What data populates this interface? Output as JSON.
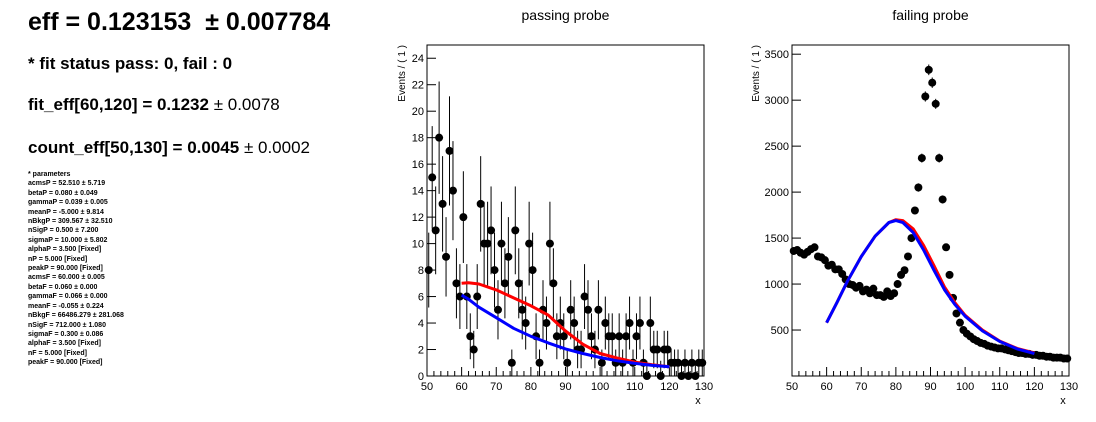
{
  "summary": {
    "eff_text": "eff = 0.123153",
    "eff_err": "± 0.007784",
    "fit_status": "* fit status pass: 0, fail : 0",
    "fit_eff_text": "fit_eff[60,120] = 0.1232",
    "fit_eff_err": "± 0.0078",
    "count_eff_text": "count_eff[50,130] = 0.0045",
    "count_eff_err": "± 0.0002"
  },
  "parameters": {
    "header": "* parameters",
    "items": [
      "acmsP = 52.510 ± 5.719",
      "betaP = 0.080 ± 0.049",
      "gammaP = 0.039 ± 0.005",
      "meanP = -5.000 ± 9.814",
      "nBkgP = 309.567 ± 32.510",
      "nSigP = 0.500 ± 7.200",
      "sigmaP = 10.000 ± 5.802",
      "alphaP = 3.500 [Fixed]",
      "nP = 5.000 [Fixed]",
      "peakP = 90.000 [Fixed]",
      "acmsF = 60.000 ± 0.005",
      "betaF = 0.060 ± 0.000",
      "gammaF = 0.066 ± 0.000",
      "meanF = -0.055 ± 0.224",
      "nBkgF = 66486.279 ± 281.068",
      "nSigF = 712.000 ± 1.080",
      "sigmaF = 0.300 ± 0.086",
      "alphaF = 3.500 [Fixed]",
      "nF = 5.000 [Fixed]",
      "peakF = 90.000 [Fixed]"
    ]
  },
  "colors": {
    "data": "#000000",
    "total_fit": "#ff0000",
    "background_fit": "#0000ff"
  },
  "chart_data": [
    {
      "type": "scatter",
      "title": "passing probe",
      "xlabel": "x",
      "ylabel": "Events / ( 1 )",
      "xlim": [
        50,
        130
      ],
      "ylim": [
        0,
        25
      ],
      "xticks": [
        50,
        60,
        70,
        80,
        90,
        100,
        110,
        120,
        130
      ],
      "yticks": [
        0,
        2,
        4,
        6,
        8,
        10,
        12,
        14,
        16,
        18,
        20,
        22,
        24
      ],
      "grid": false,
      "series": [
        {
          "kind": "data",
          "x": [
            50.5,
            51.5,
            52.5,
            53.5,
            54.5,
            55.5,
            56.5,
            57.5,
            58.5,
            59.5,
            60.5,
            61.5,
            62.5,
            63.5,
            64.5,
            65.5,
            66.5,
            67.5,
            68.5,
            69.5,
            70.5,
            71.5,
            72.5,
            73.5,
            74.5,
            75.5,
            76.5,
            77.5,
            78.5,
            79.5,
            80.5,
            81.5,
            82.5,
            83.5,
            84.5,
            85.5,
            86.5,
            87.5,
            88.5,
            89.5,
            90.5,
            91.5,
            92.5,
            93.5,
            94.5,
            95.5,
            96.5,
            97.5,
            98.5,
            99.5,
            100.5,
            101.5,
            102.5,
            103.5,
            104.5,
            105.5,
            106.5,
            107.5,
            108.5,
            109.5,
            110.5,
            111.5,
            112.5,
            113.5,
            114.5,
            115.5,
            116.5,
            117.5,
            118.5,
            119.5,
            120.5,
            121.5,
            122.5,
            123.5,
            124.5,
            125.5,
            126.5,
            127.5,
            128.5,
            129.5
          ],
          "y": [
            8,
            15,
            11,
            18,
            13,
            9,
            17,
            14,
            7,
            6,
            12,
            6,
            3,
            2,
            6,
            13,
            10,
            10,
            11,
            8,
            5,
            10,
            7,
            9,
            1,
            11,
            7,
            5,
            4,
            10,
            8,
            3,
            1,
            5,
            4,
            10,
            7,
            3,
            4,
            3,
            1,
            5,
            4,
            2,
            2,
            6,
            5,
            3,
            2,
            5,
            1,
            4,
            3,
            3,
            1,
            3,
            1,
            3,
            4,
            1,
            3,
            4,
            1,
            0,
            4,
            2,
            2,
            0,
            2,
            2,
            1,
            1,
            1,
            0,
            1,
            0,
            1,
            0,
            1,
            1
          ]
        },
        {
          "kind": "total_fit",
          "x": [
            60,
            62,
            65,
            70,
            75,
            80,
            85,
            90,
            95,
            100,
            105,
            110,
            115,
            120
          ],
          "y": [
            7.0,
            7.05,
            6.95,
            6.5,
            5.9,
            5.3,
            4.6,
            3.4,
            2.4,
            1.7,
            1.35,
            1.05,
            0.85,
            0.7
          ]
        },
        {
          "kind": "background_fit",
          "x": [
            60,
            62,
            65,
            70,
            75,
            80,
            85,
            90,
            95,
            100,
            105,
            110,
            115,
            120
          ],
          "y": [
            6.1,
            5.8,
            5.2,
            4.4,
            3.6,
            3.0,
            2.5,
            2.05,
            1.7,
            1.4,
            1.15,
            0.95,
            0.8,
            0.7
          ]
        }
      ]
    },
    {
      "type": "scatter",
      "title": "failing probe",
      "xlabel": "x",
      "ylabel": "Events / ( 1 )",
      "xlim": [
        50,
        130
      ],
      "ylim": [
        0,
        3600
      ],
      "xticks": [
        50,
        60,
        70,
        80,
        90,
        100,
        110,
        120,
        130
      ],
      "yticks": [
        500,
        1000,
        1500,
        2000,
        2500,
        3000,
        3500
      ],
      "grid": false,
      "series": [
        {
          "kind": "data",
          "x": [
            50.5,
            51.5,
            52.5,
            53.5,
            54.5,
            55.5,
            56.5,
            57.5,
            58.5,
            59.5,
            60.5,
            61.5,
            62.5,
            63.5,
            64.5,
            65.5,
            66.5,
            67.5,
            68.5,
            69.5,
            70.5,
            71.5,
            72.5,
            73.5,
            74.5,
            75.5,
            76.5,
            77.5,
            78.5,
            79.5,
            80.5,
            81.5,
            82.5,
            83.5,
            84.5,
            85.5,
            86.5,
            87.5,
            88.5,
            89.5,
            90.5,
            91.5,
            92.5,
            93.5,
            94.5,
            95.5,
            96.5,
            97.5,
            98.5,
            99.5,
            100.5,
            101.5,
            102.5,
            103.5,
            104.5,
            105.5,
            106.5,
            107.5,
            108.5,
            109.5,
            110.5,
            111.5,
            112.5,
            113.5,
            114.5,
            115.5,
            116.5,
            117.5,
            118.5,
            119.5,
            120.5,
            121.5,
            122.5,
            123.5,
            124.5,
            125.5,
            126.5,
            127.5,
            128.5,
            129.5
          ],
          "y": [
            1360,
            1370,
            1340,
            1320,
            1350,
            1380,
            1400,
            1300,
            1290,
            1260,
            1200,
            1210,
            1160,
            1160,
            1110,
            1050,
            1000,
            990,
            960,
            980,
            920,
            940,
            900,
            950,
            880,
            880,
            860,
            920,
            870,
            900,
            1000,
            1100,
            1150,
            1300,
            1500,
            1800,
            2050,
            2370,
            3040,
            3330,
            3190,
            2960,
            2370,
            1920,
            1400,
            1100,
            850,
            680,
            580,
            500,
            460,
            430,
            400,
            380,
            360,
            350,
            330,
            320,
            310,
            300,
            300,
            290,
            280,
            270,
            260,
            250,
            250,
            240,
            240,
            230,
            230,
            220,
            220,
            210,
            210,
            200,
            200,
            200,
            190,
            190
          ]
        },
        {
          "kind": "total_fit",
          "x": [
            60,
            63,
            66,
            70,
            74,
            78,
            80,
            82,
            85,
            88,
            91,
            94,
            97,
            100,
            105,
            110,
            115,
            120
          ],
          "y": [
            580,
            800,
            1030,
            1300,
            1520,
            1670,
            1700,
            1690,
            1600,
            1420,
            1200,
            970,
            800,
            660,
            500,
            380,
            300,
            250
          ]
        },
        {
          "kind": "background_fit",
          "x": [
            60,
            63,
            66,
            70,
            74,
            78,
            80,
            82,
            85,
            88,
            91,
            94,
            97,
            100,
            105,
            110,
            115,
            120
          ],
          "y": [
            580,
            800,
            1030,
            1300,
            1520,
            1670,
            1690,
            1670,
            1560,
            1370,
            1150,
            940,
            780,
            650,
            490,
            375,
            295,
            245
          ]
        }
      ]
    }
  ]
}
